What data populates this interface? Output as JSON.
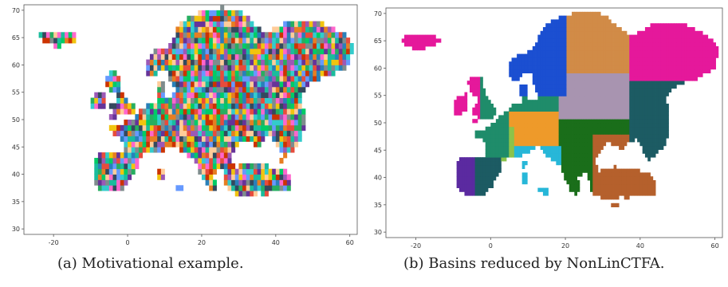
{
  "panels": [
    {
      "id": "a",
      "caption": "(a) Motivational example.",
      "y_ticks": [
        "30",
        "35",
        "40",
        "45",
        "50",
        "55",
        "60",
        "65",
        "70"
      ],
      "x_ticks": [
        "-20",
        "0",
        "20",
        "40",
        "60"
      ],
      "style": "fine-grained regions",
      "palette": [
        "#e74c3c",
        "#27ae60",
        "#2980b9",
        "#f1c40f",
        "#9b59b6",
        "#1abc9c",
        "#e67e22",
        "#34495e",
        "#ff66cc",
        "#7f8c8d",
        "#00cc66",
        "#cc3300",
        "#6699ff",
        "#ffcc99",
        "#663399",
        "#33cccc"
      ]
    },
    {
      "id": "b",
      "caption": "(b) Basins reduced by NonLinCTFA.",
      "y_ticks": [
        "30",
        "35",
        "40",
        "45",
        "50",
        "55",
        "60",
        "65",
        "70"
      ],
      "x_ticks": [
        "-20",
        "0",
        "20",
        "40",
        "60"
      ],
      "style": "reduced basins",
      "palette": [
        "#d18b47",
        "#1b4fd1",
        "#a894b0",
        "#e5189b",
        "#1f8c6a",
        "#ee9a2a",
        "#1c5b63",
        "#1a6e1a",
        "#b5602c",
        "#27b7d8",
        "#5b2aa0",
        "#8bc34a"
      ]
    }
  ]
}
